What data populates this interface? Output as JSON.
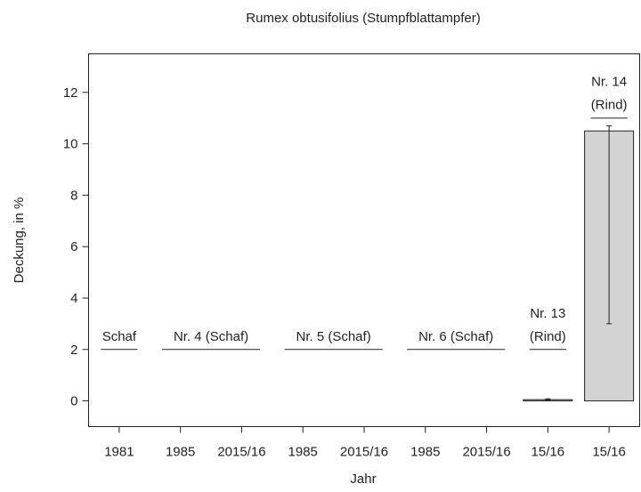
{
  "chart_data": {
    "type": "bar",
    "title": "Rumex obtusifolius (Stumpfblattampfer)",
    "x_label": "Jahr",
    "y_label": "Deckung, in %",
    "categories": [
      "1981",
      "1985",
      "2015/16",
      "1985",
      "2015/16",
      "1985",
      "2015/16",
      "15/16",
      "15/16"
    ],
    "values": [
      0,
      0,
      0,
      0,
      0,
      0,
      0,
      0.05,
      10.5
    ],
    "error_lower": [
      null,
      null,
      null,
      null,
      null,
      null,
      null,
      0.03,
      7.5
    ],
    "error_upper": [
      null,
      null,
      null,
      null,
      null,
      null,
      null,
      0.03,
      0.2
    ],
    "color": "#d3d3d3",
    "ylim": [
      -1,
      13.5
    ],
    "yticks": [
      0,
      2,
      4,
      6,
      8,
      10,
      12
    ],
    "annotations": [
      {
        "lines": [
          "Schaf"
        ],
        "start": 0,
        "end": 0,
        "y": 2
      },
      {
        "lines": [
          "Nr. 4 (Schaf)"
        ],
        "start": 1,
        "end": 2,
        "y": 2
      },
      {
        "lines": [
          "Nr. 5 (Schaf)"
        ],
        "start": 3,
        "end": 4,
        "y": 2
      },
      {
        "lines": [
          "Nr. 6 (Schaf)"
        ],
        "start": 5,
        "end": 6,
        "y": 2
      },
      {
        "lines": [
          "Nr. 13",
          "(Rind)"
        ],
        "start": 7,
        "end": 7,
        "y": 2
      },
      {
        "lines": [
          "Nr. 14",
          "(Rind)"
        ],
        "start": 8,
        "end": 8,
        "y": 11
      }
    ]
  }
}
